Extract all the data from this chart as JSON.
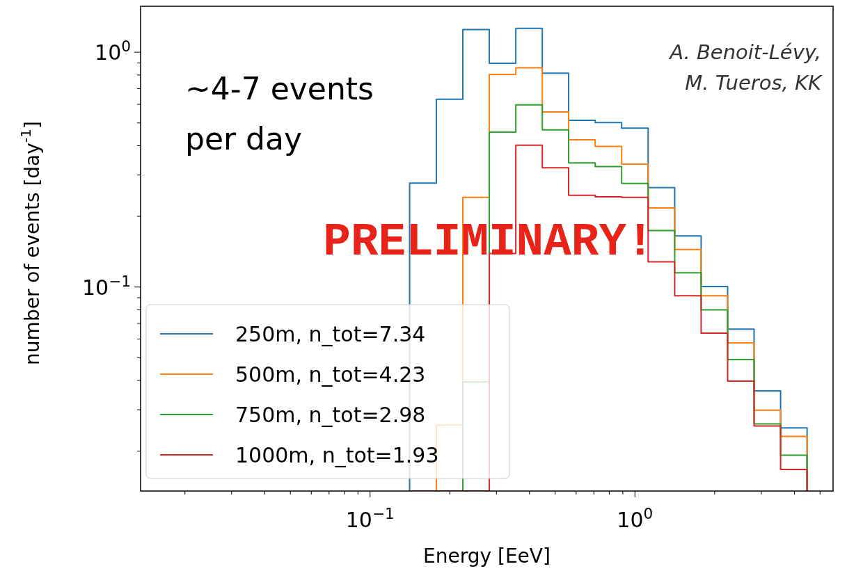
{
  "chart_data": {
    "type": "histogram",
    "xlabel": "Energy [EeV]",
    "ylabel": "number of events [day$^{-1}$]",
    "log": "xy",
    "bins": [
      0.141,
      0.178,
      0.224,
      0.282,
      0.355,
      0.447,
      0.562,
      0.708,
      0.891,
      1.122,
      1.413,
      1.778,
      2.239,
      2.818,
      3.548,
      4.467
    ],
    "series": [
      {
        "name": "250m, n_tot=7.34",
        "color": "#1f77b4",
        "values": [
          0.277,
          0.63,
          1.25,
          0.897,
          1.265,
          0.814,
          0.513,
          0.502,
          0.475,
          0.265,
          0.165,
          0.1005,
          0.0662,
          0.0361,
          0.0251
        ]
      },
      {
        "name": "500m, n_tot=4.23",
        "color": "#ff7f0e",
        "values": [
          null,
          0.0258,
          0.241,
          0.804,
          0.858,
          0.557,
          0.424,
          0.397,
          0.334,
          0.217,
          0.1445,
          0.0917,
          0.0578,
          0.0299,
          0.0231
        ]
      },
      {
        "name": "750m, n_tot=2.98",
        "color": "#2ca02c",
        "values": [
          null,
          null,
          0.0394,
          0.457,
          0.597,
          0.467,
          0.338,
          0.326,
          0.276,
          0.174,
          0.115,
          0.0799,
          0.0491,
          0.0261,
          0.0192
        ]
      },
      {
        "name": "1000m, n_tot=1.93",
        "color": "#d62728",
        "values": [
          null,
          null,
          null,
          0.139,
          0.402,
          0.322,
          0.246,
          0.242,
          0.241,
          0.128,
          0.0917,
          0.0636,
          0.0397,
          0.0256,
          0.0167
        ]
      }
    ],
    "xlim": [
      0.0136,
      5.6
    ],
    "ylim": [
      0.01352,
      1.57
    ],
    "xticks": [
      {
        "value": 0.02,
        "label": null
      },
      {
        "value": 0.03,
        "label": null
      },
      {
        "value": 0.04,
        "label": null
      },
      {
        "value": 0.05,
        "label": null
      },
      {
        "value": 0.06,
        "label": null
      },
      {
        "value": 0.07,
        "label": null
      },
      {
        "value": 0.08,
        "label": null
      },
      {
        "value": 0.09,
        "label": null
      },
      {
        "value": 0.1,
        "label": "10$^{−1}$"
      },
      {
        "value": 0.2,
        "label": null
      },
      {
        "value": 0.3,
        "label": null
      },
      {
        "value": 0.4,
        "label": null
      },
      {
        "value": 0.5,
        "label": null
      },
      {
        "value": 0.6,
        "label": null
      },
      {
        "value": 0.7,
        "label": null
      },
      {
        "value": 0.8,
        "label": null
      },
      {
        "value": 0.9,
        "label": null
      },
      {
        "value": 1,
        "label": "10$^{0}$"
      },
      {
        "value": 2,
        "label": null
      },
      {
        "value": 3,
        "label": null
      },
      {
        "value": 4,
        "label": null
      },
      {
        "value": 5,
        "label": null
      }
    ],
    "yticks": [
      {
        "value": 0.02,
        "label": null
      },
      {
        "value": 0.03,
        "label": null
      },
      {
        "value": 0.04,
        "label": null
      },
      {
        "value": 0.05,
        "label": null
      },
      {
        "value": 0.06,
        "label": null
      },
      {
        "value": 0.07,
        "label": null
      },
      {
        "value": 0.08,
        "label": null
      },
      {
        "value": 0.09,
        "label": null
      },
      {
        "value": 0.1,
        "label": "10$^{−1}$"
      },
      {
        "value": 0.2,
        "label": null
      },
      {
        "value": 0.3,
        "label": null
      },
      {
        "value": 0.4,
        "label": null
      },
      {
        "value": 0.5,
        "label": null
      },
      {
        "value": 0.6,
        "label": null
      },
      {
        "value": 0.7,
        "label": null
      },
      {
        "value": 0.8,
        "label": null
      },
      {
        "value": 0.9,
        "label": null
      },
      {
        "value": 1,
        "label": "10$^{0}$"
      }
    ],
    "legend": "bottom left",
    "grid": false,
    "annotations": [
      "~4-7 events\nper day",
      "A. Benoit-Lévy,\nM. Tueros, KK",
      "PRELIMINARY!"
    ]
  }
}
